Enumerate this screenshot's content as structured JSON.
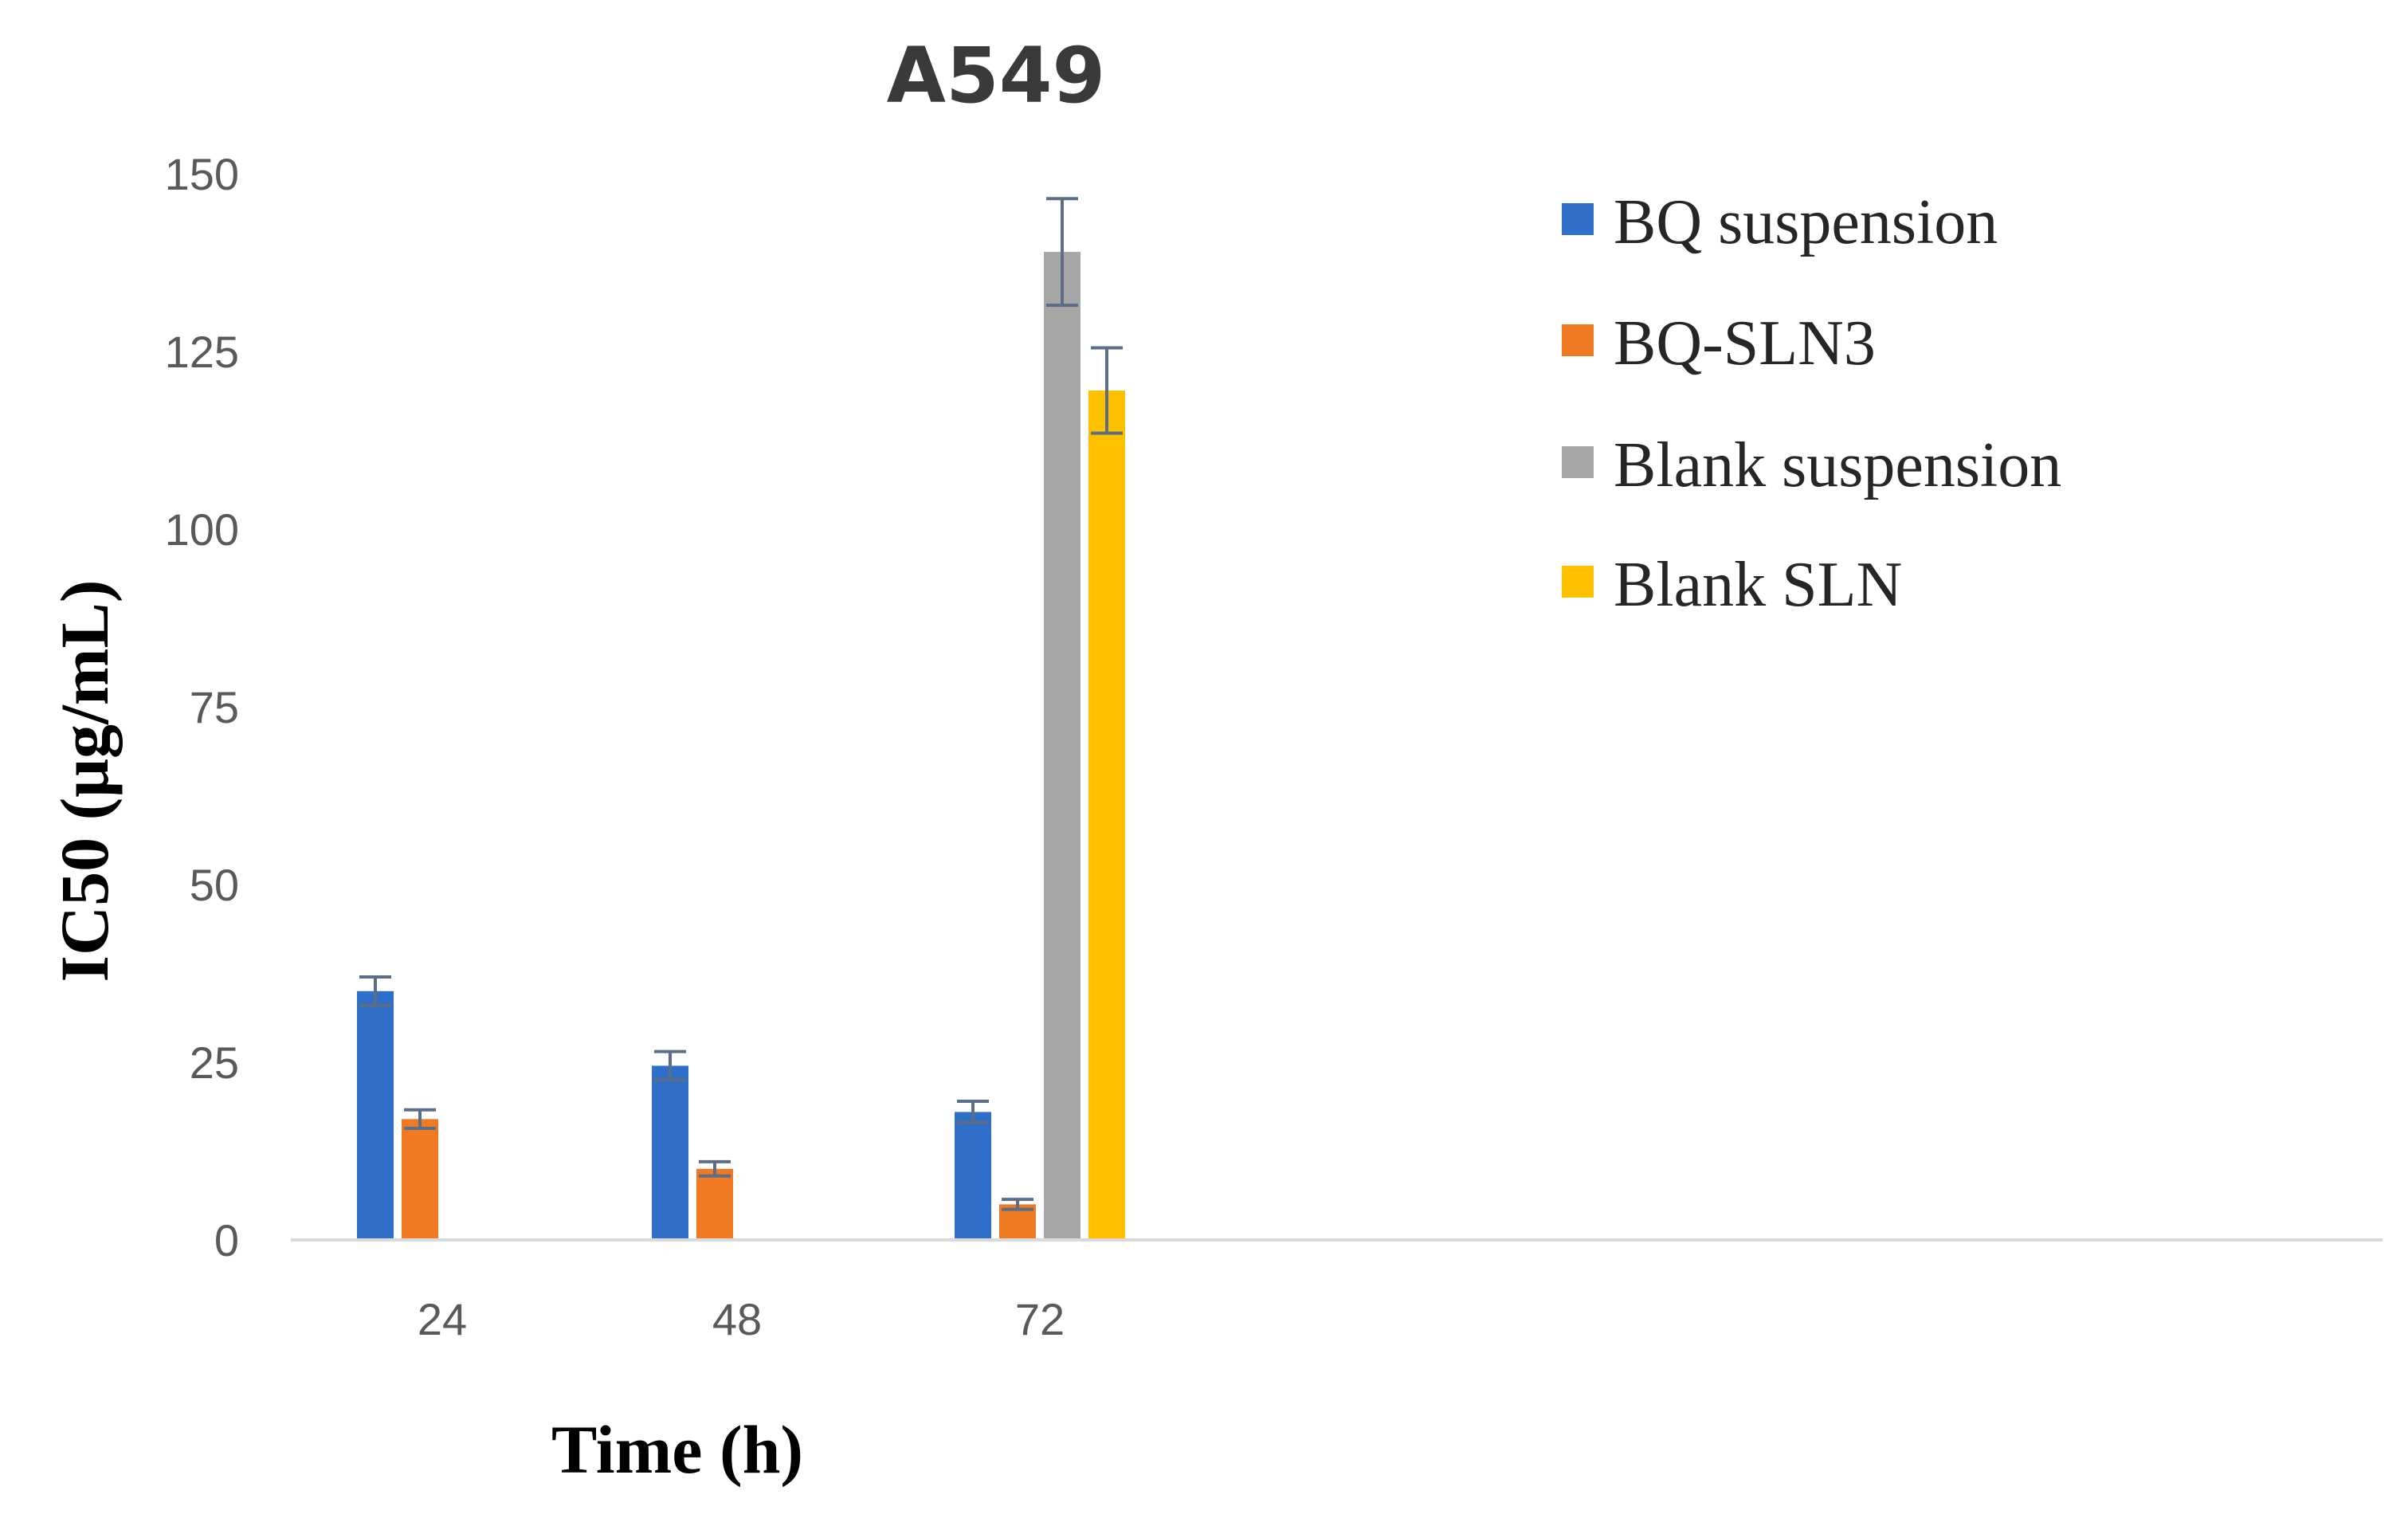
{
  "chart_data": {
    "type": "bar",
    "title": "A549",
    "xlabel": "Time (h)",
    "ylabel": "IC50 (μg/mL)",
    "categories": [
      "24",
      "48",
      "72"
    ],
    "ylim": [
      0,
      150
    ],
    "yticks": [
      0,
      25,
      50,
      75,
      100,
      125,
      150
    ],
    "grid": false,
    "legend_position": "top-right",
    "series": [
      {
        "name": "BQ suspension",
        "color": "#2f6fc9",
        "values": [
          35,
          24.5,
          18
        ],
        "errors": [
          2,
          2,
          1.5
        ]
      },
      {
        "name": "BQ-SLN3",
        "color": "#f07a24",
        "values": [
          17,
          10,
          5
        ],
        "errors": [
          1.3,
          1,
          0.7
        ]
      },
      {
        "name": "Blank suspension",
        "color": "#a6a6a6",
        "values": [
          null,
          null,
          139
        ],
        "errors": [
          null,
          null,
          7.5
        ]
      },
      {
        "name": "Blank SLN",
        "color": "#ffc000",
        "values": [
          null,
          null,
          119.5
        ],
        "errors": [
          null,
          null,
          6
        ]
      }
    ]
  }
}
